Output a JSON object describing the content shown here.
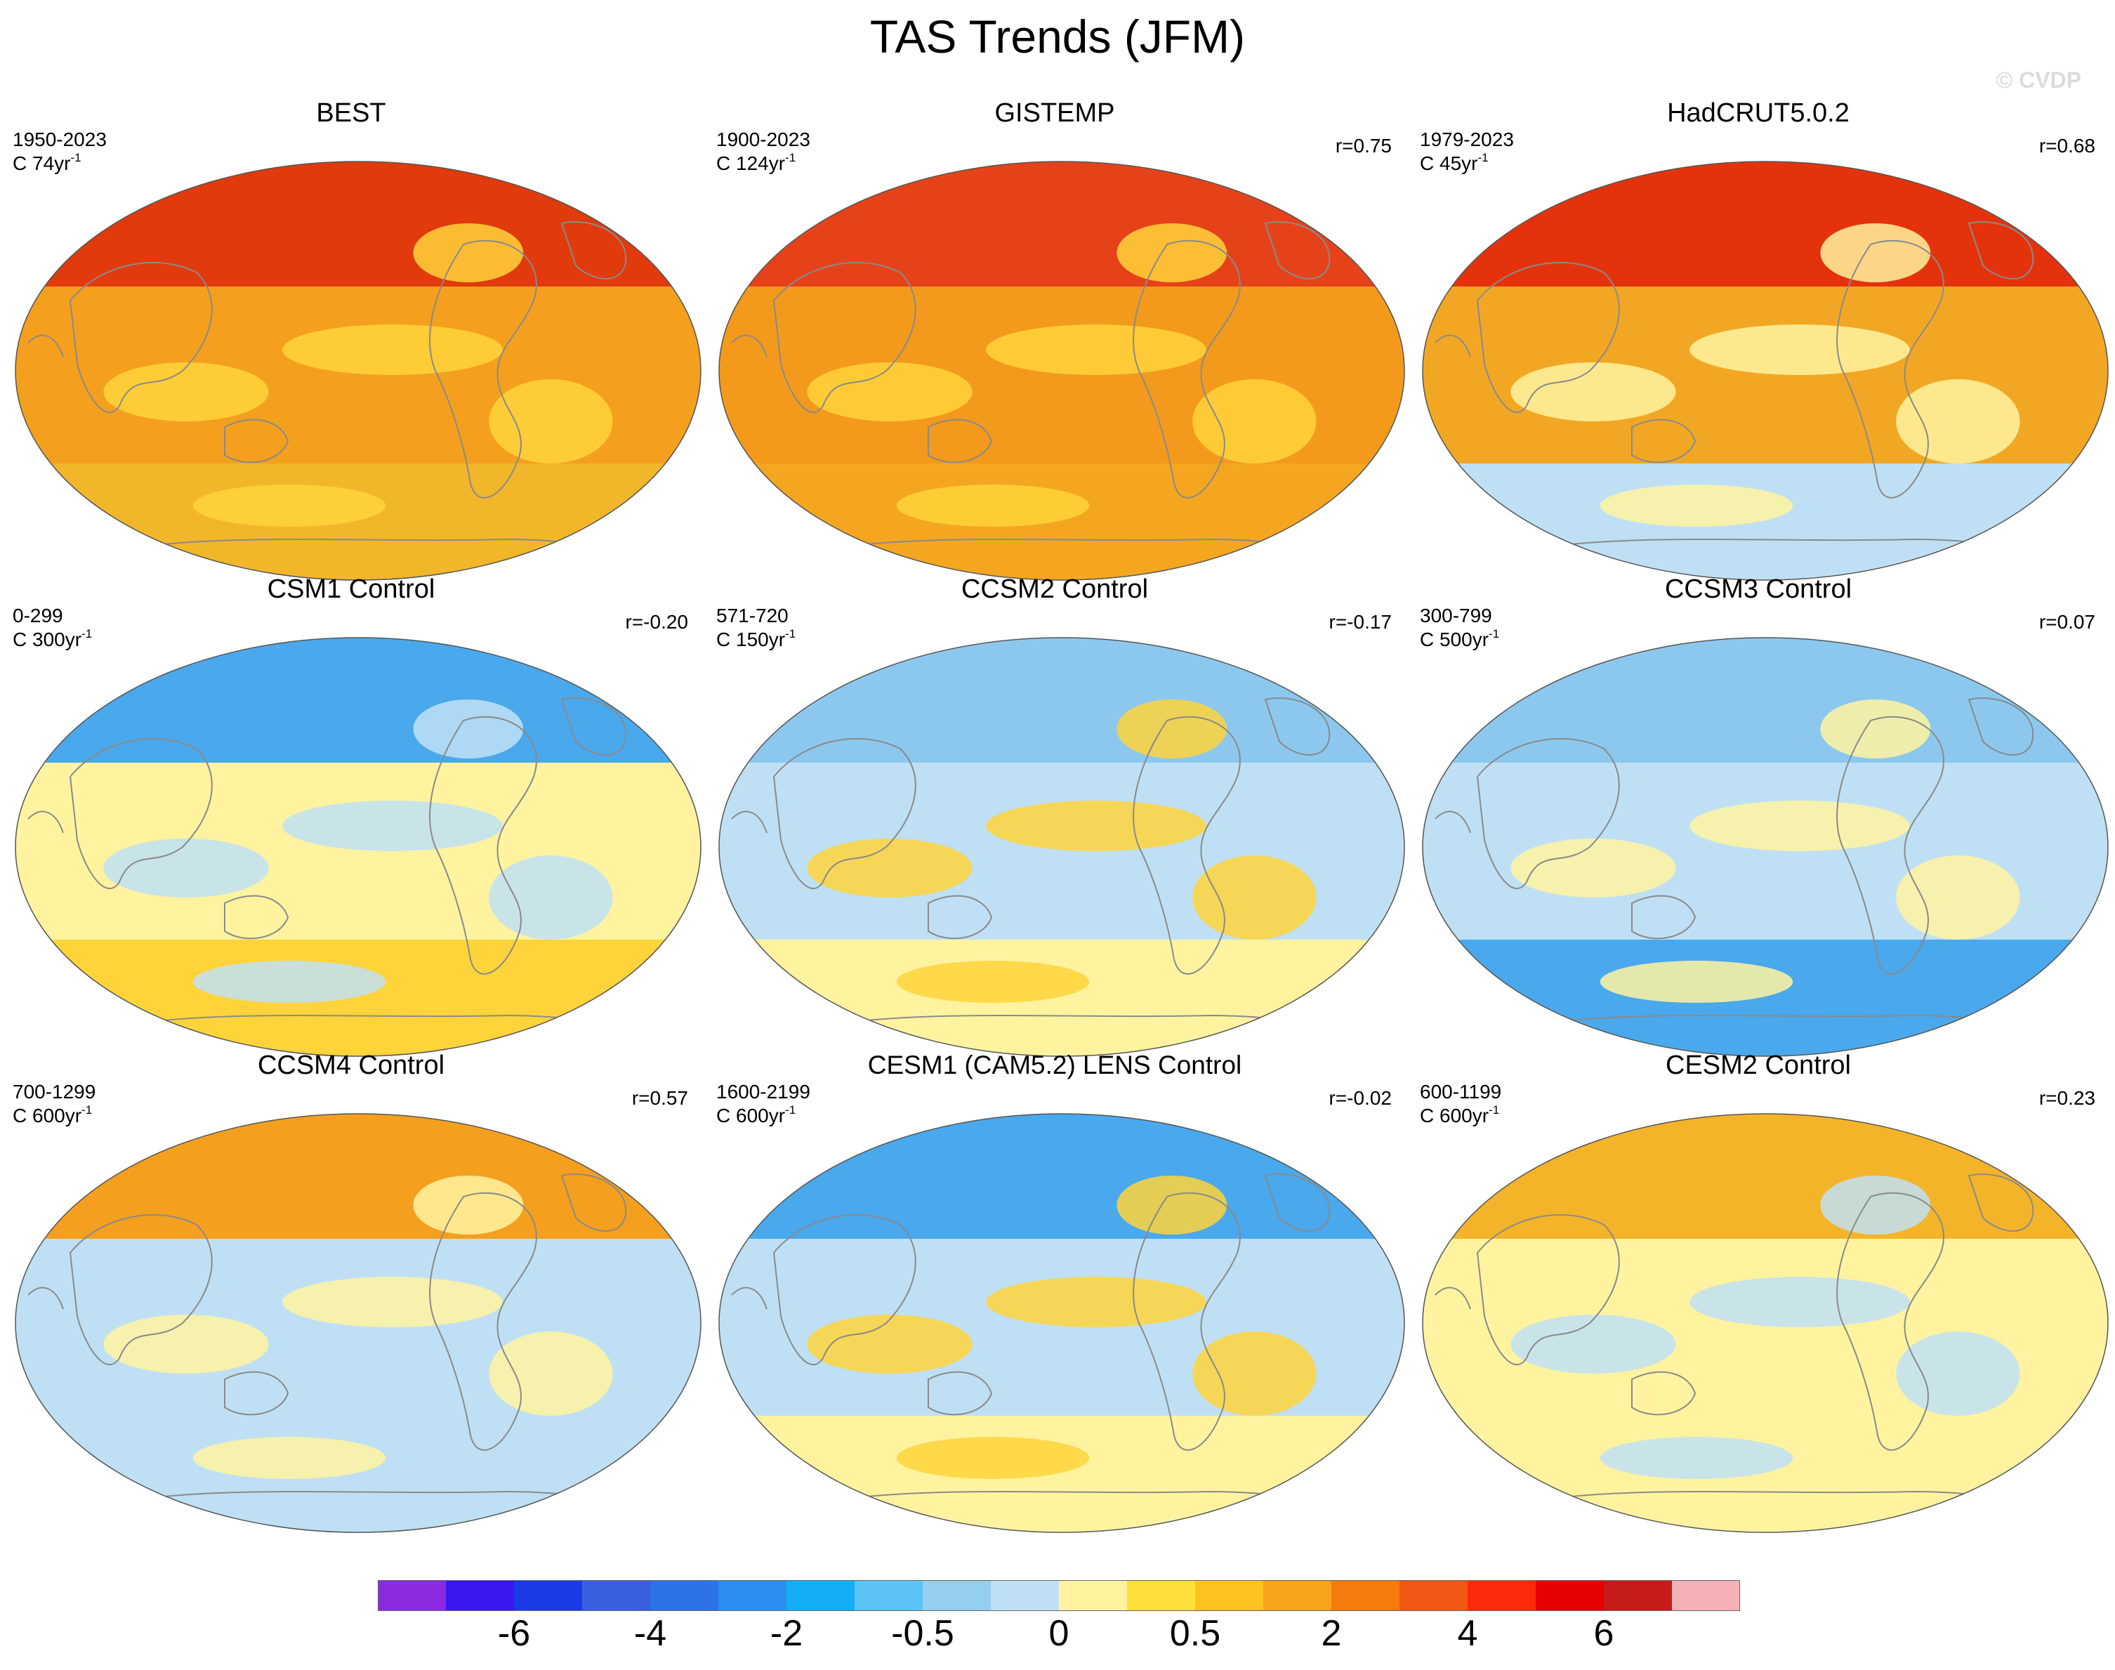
{
  "figure": {
    "title": "TAS Trends (JFM)",
    "copyright": "© CVDP"
  },
  "panels": [
    {
      "title": "BEST",
      "period": "1950-2023",
      "units_main": "C 74yr",
      "units_exp": "-1",
      "corr": "",
      "colors": {
        "north": "#e03a0d",
        "mid": "#f4a01e",
        "south": "#f2b62b",
        "accent": "#ffd43b"
      }
    },
    {
      "title": "GISTEMP",
      "period": "1900-2023",
      "units_main": "C 124yr",
      "units_exp": "-1",
      "corr": "r=0.75",
      "colors": {
        "north": "#e6421a",
        "mid": "#f39a1c",
        "south": "#f5a620",
        "accent": "#ffd43b"
      }
    },
    {
      "title": "HadCRUT5.0.2",
      "period": "1979-2023",
      "units_main": "C 45yr",
      "units_exp": "-1",
      "corr": "r=0.68",
      "colors": {
        "north": "#e4330c",
        "mid": "#f2a724",
        "south": "#bfe0f4",
        "accent": "#fff3a0"
      }
    },
    {
      "title": "CSM1 Control",
      "period": "0-299",
      "units_main": "C 300yr",
      "units_exp": "-1",
      "corr": "r=-0.20",
      "colors": {
        "north": "#4aa8ec",
        "mid": "#fff3a0",
        "south": "#ffd43b",
        "accent": "#bfe0f4"
      }
    },
    {
      "title": "CCSM2 Control",
      "period": "571-720",
      "units_main": "C 150yr",
      "units_exp": "-1",
      "corr": "r=-0.17",
      "colors": {
        "north": "#8cc8ee",
        "mid": "#bfe0f4",
        "south": "#fff3a0",
        "accent": "#ffd43b"
      }
    },
    {
      "title": "CCSM3 Control",
      "period": "300-799",
      "units_main": "C 500yr",
      "units_exp": "-1",
      "corr": "r=0.07",
      "colors": {
        "north": "#8cc8ee",
        "mid": "#bfe0f4",
        "south": "#4aa8ec",
        "accent": "#fff3a0"
      }
    },
    {
      "title": "CCSM4 Control",
      "period": "700-1299",
      "units_main": "C 600yr",
      "units_exp": "-1",
      "corr": "r=0.57",
      "colors": {
        "north": "#f4a01e",
        "mid": "#bfe0f4",
        "south": "#bfe0f4",
        "accent": "#fff3a0"
      }
    },
    {
      "title": "CESM1 (CAM5.2) LENS Control",
      "period": "1600-2199",
      "units_main": "C 600yr",
      "units_exp": "-1",
      "corr": "r=-0.02",
      "colors": {
        "north": "#4aa8ec",
        "mid": "#bfe0f4",
        "south": "#fff3a0",
        "accent": "#ffd43b"
      }
    },
    {
      "title": "CESM2 Control",
      "period": "600-1199",
      "units_main": "C 600yr",
      "units_exp": "-1",
      "corr": "r=0.23",
      "colors": {
        "north": "#f4b42a",
        "mid": "#fff3a0",
        "south": "#fff3a0",
        "accent": "#bfe0f4"
      }
    }
  ],
  "colorbar": {
    "colors": [
      "#8a2be2",
      "#3b16f0",
      "#1a3ae6",
      "#3a5ee0",
      "#2d72e8",
      "#2b8ff0",
      "#14aef5",
      "#5bc4f5",
      "#94cfee",
      "#bfe0f4",
      "#fff3a0",
      "#ffe03a",
      "#fdc21e",
      "#f9a21b",
      "#f77a0c",
      "#f25713",
      "#ff2a0a",
      "#e60000",
      "#c71a1a",
      "#f4b2b8"
    ],
    "labels": [
      "-6",
      "-4",
      "-2",
      "-0.5",
      "0",
      "0.5",
      "2",
      "4",
      "6"
    ]
  }
}
